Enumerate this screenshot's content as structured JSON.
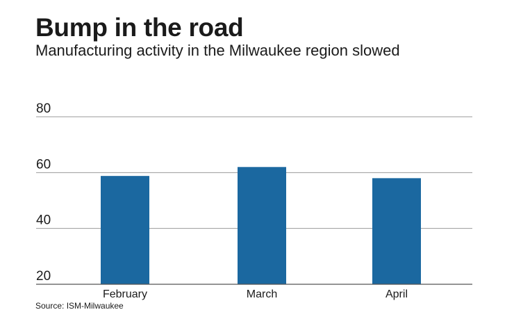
{
  "chart_data": {
    "type": "bar",
    "title": "Bump in the road",
    "subtitle": "Manufacturing activity in the Milwaukee region slowed",
    "categories": [
      "February",
      "March",
      "April"
    ],
    "values": [
      58.8,
      62.0,
      58.0
    ],
    "yticks": [
      20,
      40,
      60,
      80
    ],
    "ylim": [
      20,
      80
    ],
    "grid": true,
    "source": "Source: ISM-Milwaukee",
    "bar_color": "#1b68a0",
    "grid_color": "#9a9a9a",
    "axis_color": "#555555"
  }
}
